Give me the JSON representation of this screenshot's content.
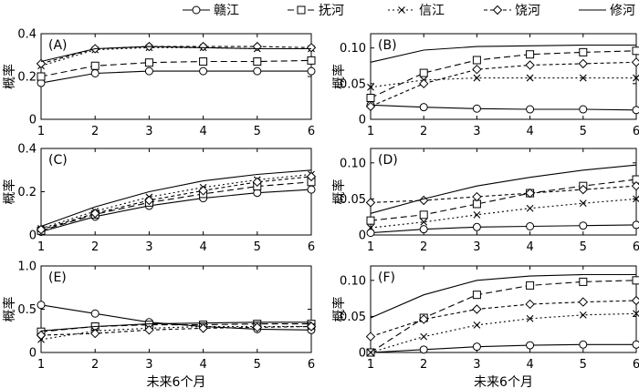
{
  "legend": [
    {
      "name": "赣江",
      "marker": "circle",
      "dash": ""
    },
    {
      "name": "抚河",
      "marker": "square",
      "dash": "7,4"
    },
    {
      "name": "信江",
      "marker": "x",
      "dash": "2,3"
    },
    {
      "name": "饶河",
      "marker": "diamond",
      "dash": "4,3"
    },
    {
      "name": "修河",
      "marker": "none",
      "dash": ""
    }
  ],
  "chart_data": [
    {
      "type": "line",
      "panel_label": "(A)",
      "ylabel": "概率",
      "xlabel": "",
      "x": [
        1,
        2,
        3,
        4,
        5,
        6
      ],
      "ylim": [
        0,
        0.4
      ],
      "yticks": [
        "0",
        "0.2",
        "0.4"
      ],
      "ytick_values": [
        0,
        0.2,
        0.4
      ],
      "series": [
        {
          "name": "赣江",
          "values": [
            0.17,
            0.215,
            0.225,
            0.225,
            0.225,
            0.225
          ]
        },
        {
          "name": "抚河",
          "values": [
            0.2,
            0.25,
            0.265,
            0.27,
            0.27,
            0.275
          ]
        },
        {
          "name": "信江",
          "values": [
            0.25,
            0.325,
            0.335,
            0.335,
            0.33,
            0.33
          ]
        },
        {
          "name": "饶河",
          "values": [
            0.26,
            0.33,
            0.34,
            0.34,
            0.34,
            0.335
          ]
        },
        {
          "name": "修河",
          "values": [
            0.27,
            0.33,
            0.34,
            0.335,
            0.33,
            0.33
          ]
        }
      ]
    },
    {
      "type": "line",
      "panel_label": "(B)",
      "ylabel": "概率",
      "xlabel": "",
      "x": [
        1,
        2,
        3,
        4,
        5,
        6
      ],
      "ylim": [
        0,
        0.12
      ],
      "yticks": [
        "0",
        "0.05",
        "0.10"
      ],
      "ytick_values": [
        0,
        0.05,
        0.1
      ],
      "series": [
        {
          "name": "赣江",
          "values": [
            0.02,
            0.017,
            0.015,
            0.014,
            0.014,
            0.013
          ]
        },
        {
          "name": "抚河",
          "values": [
            0.03,
            0.065,
            0.083,
            0.091,
            0.094,
            0.096
          ]
        },
        {
          "name": "信江",
          "values": [
            0.045,
            0.055,
            0.058,
            0.058,
            0.058,
            0.058
          ]
        },
        {
          "name": "饶河",
          "values": [
            0.018,
            0.05,
            0.07,
            0.076,
            0.078,
            0.08
          ]
        },
        {
          "name": "修河",
          "values": [
            0.08,
            0.097,
            0.102,
            0.103,
            0.104,
            0.104
          ]
        }
      ]
    },
    {
      "type": "line",
      "panel_label": "(C)",
      "ylabel": "概率",
      "xlabel": "",
      "x": [
        1,
        2,
        3,
        4,
        5,
        6
      ],
      "ylim": [
        0,
        0.4
      ],
      "yticks": [
        "0",
        "0.2",
        "0.4"
      ],
      "ytick_values": [
        0,
        0.2,
        0.4
      ],
      "series": [
        {
          "name": "赣江",
          "values": [
            0.015,
            0.085,
            0.135,
            0.17,
            0.195,
            0.21
          ]
        },
        {
          "name": "抚河",
          "values": [
            0.02,
            0.095,
            0.15,
            0.19,
            0.225,
            0.245
          ]
        },
        {
          "name": "信江",
          "values": [
            0.03,
            0.11,
            0.175,
            0.22,
            0.255,
            0.28
          ]
        },
        {
          "name": "饶河",
          "values": [
            0.025,
            0.1,
            0.16,
            0.205,
            0.245,
            0.27
          ]
        },
        {
          "name": "修河",
          "values": [
            0.04,
            0.13,
            0.2,
            0.25,
            0.28,
            0.3
          ]
        }
      ]
    },
    {
      "type": "line",
      "panel_label": "(D)",
      "ylabel": "概率",
      "xlabel": "",
      "x": [
        1,
        2,
        3,
        4,
        5,
        6
      ],
      "ylim": [
        0,
        0.12
      ],
      "yticks": [
        "0",
        "0.05",
        "0.10"
      ],
      "ytick_values": [
        0,
        0.05,
        0.1
      ],
      "series": [
        {
          "name": "赣江",
          "values": [
            0.003,
            0.008,
            0.011,
            0.012,
            0.013,
            0.014
          ]
        },
        {
          "name": "抚河",
          "values": [
            0.02,
            0.028,
            0.043,
            0.058,
            0.068,
            0.077
          ]
        },
        {
          "name": "信江",
          "values": [
            0.01,
            0.018,
            0.028,
            0.037,
            0.044,
            0.05
          ]
        },
        {
          "name": "饶河",
          "values": [
            0.045,
            0.048,
            0.053,
            0.058,
            0.063,
            0.068
          ]
        },
        {
          "name": "修河",
          "values": [
            0.03,
            0.05,
            0.068,
            0.08,
            0.09,
            0.097
          ]
        }
      ]
    },
    {
      "type": "line",
      "panel_label": "(E)",
      "ylabel": "概率",
      "xlabel": "未来6个月",
      "x": [
        1,
        2,
        3,
        4,
        5,
        6
      ],
      "ylim": [
        0,
        1.0
      ],
      "yticks": [
        "0",
        "0.5",
        "1.0"
      ],
      "ytick_values": [
        0,
        0.5,
        1.0
      ],
      "series": [
        {
          "name": "赣江",
          "values": [
            0.55,
            0.45,
            0.35,
            0.3,
            0.27,
            0.26
          ]
        },
        {
          "name": "抚河",
          "values": [
            0.24,
            0.3,
            0.32,
            0.32,
            0.33,
            0.33
          ]
        },
        {
          "name": "信江",
          "values": [
            0.15,
            0.25,
            0.28,
            0.3,
            0.3,
            0.3
          ]
        },
        {
          "name": "饶河",
          "values": [
            0.2,
            0.22,
            0.26,
            0.28,
            0.29,
            0.3
          ]
        },
        {
          "name": "修河",
          "values": [
            0.25,
            0.3,
            0.33,
            0.34,
            0.35,
            0.35
          ]
        }
      ]
    },
    {
      "type": "line",
      "panel_label": "(F)",
      "ylabel": "概率",
      "xlabel": "未来6个月",
      "x": [
        1,
        2,
        3,
        4,
        5,
        6
      ],
      "ylim": [
        0,
        0.12
      ],
      "yticks": [
        "0",
        "0.05",
        "0.10"
      ],
      "ytick_values": [
        0,
        0.05,
        0.1
      ],
      "series": [
        {
          "name": "赣江",
          "values": [
            0,
            0.004,
            0.008,
            0.01,
            0.011,
            0.011
          ]
        },
        {
          "name": "抚河",
          "values": [
            0,
            0.048,
            0.08,
            0.093,
            0.098,
            0.1
          ]
        },
        {
          "name": "信江",
          "values": [
            0,
            0.022,
            0.038,
            0.047,
            0.052,
            0.054
          ]
        },
        {
          "name": "饶河",
          "values": [
            0.022,
            0.046,
            0.06,
            0.067,
            0.07,
            0.072
          ]
        },
        {
          "name": "修河",
          "values": [
            0.048,
            0.08,
            0.1,
            0.106,
            0.108,
            0.108
          ]
        }
      ]
    }
  ]
}
